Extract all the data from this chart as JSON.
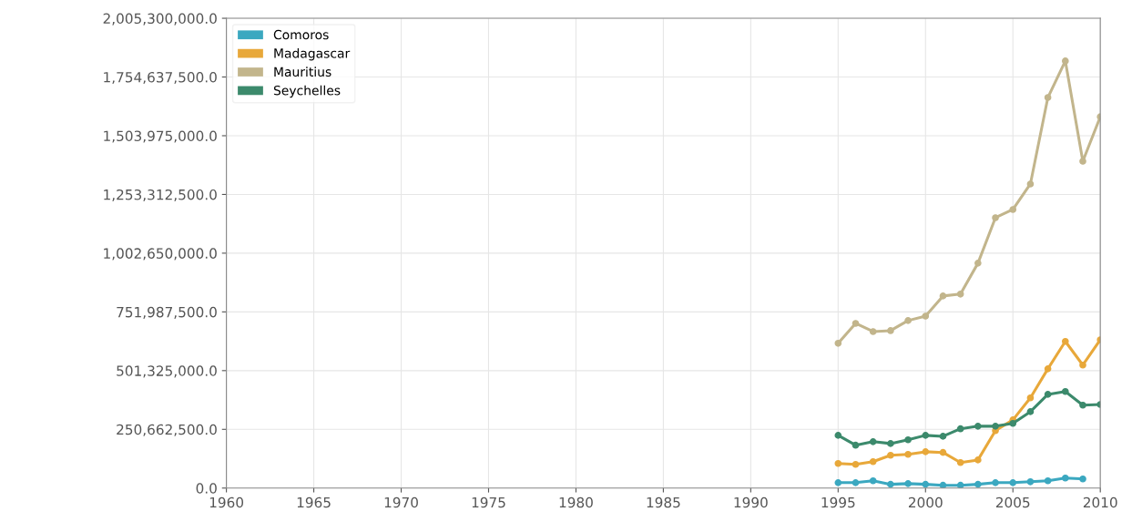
{
  "chart_data": {
    "type": "line",
    "x": [
      1995,
      1996,
      1997,
      1998,
      1999,
      2000,
      2001,
      2002,
      2003,
      2004,
      2005,
      2006,
      2007,
      2008,
      2009,
      2010
    ],
    "series": [
      {
        "name": "Comoros",
        "color": "#3ba8c0",
        "values": [
          23000000,
          23000000,
          31000000,
          16000000,
          19000000,
          16000000,
          12000000,
          12000000,
          16000000,
          23000000,
          23000000,
          27000000,
          31000000,
          43000000,
          39000000,
          null
        ]
      },
      {
        "name": "Madagascar",
        "color": "#e8a83a",
        "values": [
          105000000,
          101000000,
          113000000,
          140000000,
          144000000,
          155000000,
          152000000,
          109000000,
          120000000,
          245000000,
          291000000,
          385000000,
          509000000,
          626000000,
          525000000,
          633000000
        ]
      },
      {
        "name": "Mauritius",
        "color": "#c2b58c",
        "values": [
          618000000,
          703000000,
          668000000,
          672000000,
          715000000,
          734000000,
          820000000,
          828000000,
          960000000,
          1154000000,
          1189000000,
          1298000000,
          1667000000,
          1823000000,
          1395000000,
          1585000000
        ]
      },
      {
        "name": "Seychelles",
        "color": "#3c8a6c",
        "values": [
          225000000,
          183000000,
          198000000,
          190000000,
          206000000,
          225000000,
          221000000,
          253000000,
          264000000,
          264000000,
          276000000,
          326000000,
          400000000,
          412000000,
          354000000,
          357000000
        ]
      }
    ],
    "xlim": [
      1960,
      2010
    ],
    "xticks": [
      1960,
      1965,
      1970,
      1975,
      1980,
      1985,
      1990,
      1995,
      2000,
      2005,
      2010
    ],
    "ylim": [
      0,
      2005300000
    ],
    "yticks": [
      {
        "value": 0,
        "label": "0.0"
      },
      {
        "value": 250662500,
        "label": "250,662,500.0"
      },
      {
        "value": 501325000,
        "label": "501,325,000.0"
      },
      {
        "value": 751987500,
        "label": "751,987,500.0"
      },
      {
        "value": 1002650000,
        "label": "1,002,650,000.0"
      },
      {
        "value": 1253312500,
        "label": "1,253,312,500.0"
      },
      {
        "value": 1503975000,
        "label": "1,503,975,000.0"
      },
      {
        "value": 1754637500,
        "label": "1,754,637,500.0"
      },
      {
        "value": 2005300000,
        "label": "2,005,300,000.0"
      }
    ],
    "grid": true,
    "legend": "top left",
    "marker": "circle",
    "line_style": "solid"
  }
}
